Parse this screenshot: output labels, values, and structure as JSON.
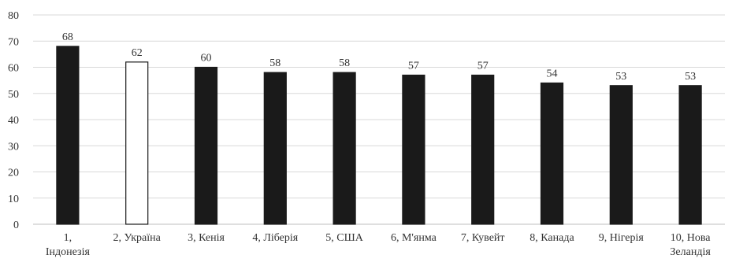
{
  "chart_data": {
    "type": "bar",
    "title": "",
    "xlabel": "",
    "ylabel": "",
    "ylim": [
      0,
      80
    ],
    "yticks": [
      0,
      10,
      20,
      30,
      40,
      50,
      60,
      70,
      80
    ],
    "grid": "horizontal",
    "categories": [
      [
        "1,",
        "Індонезія"
      ],
      [
        "2, Україна"
      ],
      [
        "3, Кенія"
      ],
      [
        "4, Ліберія"
      ],
      [
        "5, США"
      ],
      [
        "6, М'янма"
      ],
      [
        "7, Кувейт"
      ],
      [
        "8, Канада"
      ],
      [
        "9, Нігерія"
      ],
      [
        "10, Нова",
        "Зеландія"
      ]
    ],
    "values": [
      68,
      62,
      60,
      58,
      58,
      57,
      57,
      54,
      53,
      53
    ],
    "bar_fill": [
      "#1a1a1a",
      "#ffffff",
      "#1a1a1a",
      "#1a1a1a",
      "#1a1a1a",
      "#1a1a1a",
      "#1a1a1a",
      "#1a1a1a",
      "#1a1a1a",
      "#1a1a1a"
    ],
    "bar_stroke": "#1a1a1a"
  }
}
